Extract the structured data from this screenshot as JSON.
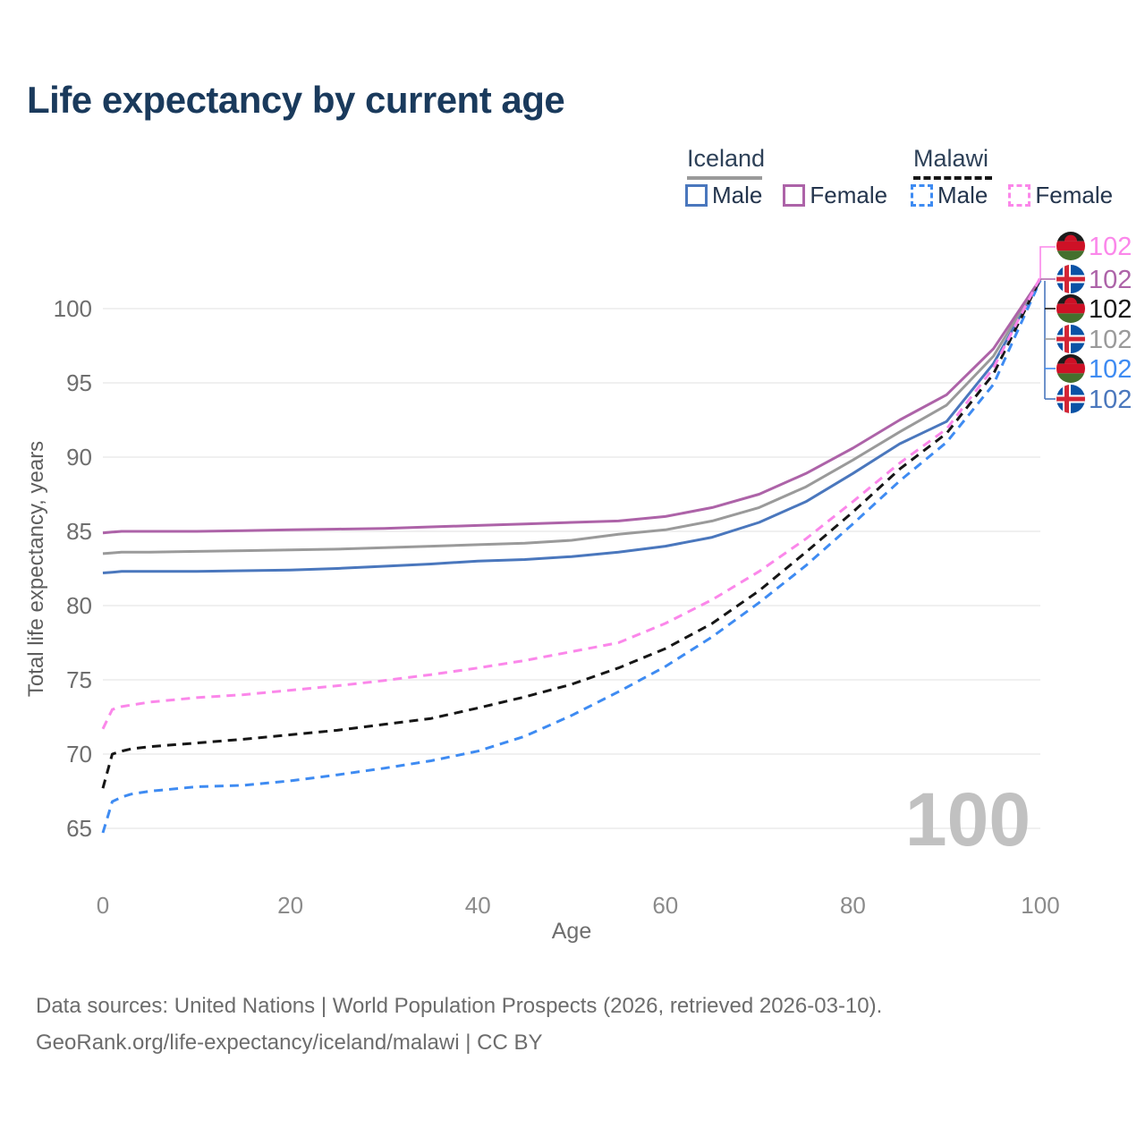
{
  "title": "Life expectancy by current age",
  "legend": {
    "groups": [
      {
        "country": "Iceland",
        "line_style": "solid",
        "items": [
          {
            "label": "Male",
            "dash": "solid"
          },
          {
            "label": "Female",
            "dash": "solid"
          }
        ]
      },
      {
        "country": "Malawi",
        "line_style": "dashed",
        "items": [
          {
            "label": "Male",
            "dash": "dashed"
          },
          {
            "label": "Female",
            "dash": "dashed"
          }
        ]
      }
    ]
  },
  "watermark": "100",
  "footer": {
    "line1": "Data sources: United Nations | World Population Prospects (2026, retrieved 2026-03-10).",
    "line2": "GeoRank.org/life-expectancy/iceland/malawi | CC BY"
  },
  "chart_data": {
    "type": "line",
    "title": "Life expectancy by current age",
    "xlabel": "Age",
    "ylabel": "Total life expectancy, years",
    "xlim": [
      0,
      100
    ],
    "ylim": [
      63,
      103
    ],
    "xticks": [
      0,
      20,
      40,
      60,
      80,
      100
    ],
    "yticks": [
      65,
      70,
      75,
      80,
      85,
      90,
      95,
      100
    ],
    "grid": "horizontal",
    "legend_position": "top-right",
    "x": [
      0,
      1,
      2,
      3,
      5,
      10,
      15,
      20,
      25,
      30,
      35,
      40,
      45,
      50,
      55,
      60,
      65,
      70,
      75,
      80,
      85,
      90,
      95,
      100
    ],
    "series": [
      {
        "name": "Malawi Female",
        "country": "malawi",
        "sex": "female",
        "color": "#fb87ea",
        "dash": "dashed",
        "end_label": "102",
        "values": [
          71.7,
          73.0,
          73.2,
          73.3,
          73.5,
          73.8,
          74.0,
          74.3,
          74.6,
          74.95,
          75.35,
          75.8,
          76.3,
          76.9,
          77.5,
          78.8,
          80.4,
          82.3,
          84.5,
          87.0,
          89.6,
          91.9,
          96.0,
          102.1
        ]
      },
      {
        "name": "Iceland Female",
        "country": "iceland",
        "sex": "female",
        "color": "#ad63a8",
        "dash": "solid",
        "end_label": "102",
        "values": [
          84.9,
          84.95,
          85.0,
          85.0,
          85.0,
          85.0,
          85.05,
          85.1,
          85.15,
          85.2,
          85.3,
          85.4,
          85.5,
          85.6,
          85.7,
          86.0,
          86.6,
          87.5,
          88.9,
          90.6,
          92.5,
          94.2,
          97.3,
          102.0
        ]
      },
      {
        "name": "Malawi Both sexes",
        "country": "malawi",
        "sex": "total",
        "color": "#161616",
        "dash": "dashed",
        "end_label": "102",
        "values": [
          67.7,
          70.0,
          70.2,
          70.35,
          70.5,
          70.75,
          71.0,
          71.3,
          71.6,
          72.0,
          72.4,
          73.1,
          73.85,
          74.7,
          75.8,
          77.1,
          78.8,
          81.0,
          83.6,
          86.3,
          89.2,
          91.6,
          95.6,
          102.0
        ]
      },
      {
        "name": "Iceland Both sexes",
        "country": "iceland",
        "sex": "total",
        "color": "#9a9a9a",
        "dash": "solid",
        "end_label": "102",
        "values": [
          83.5,
          83.55,
          83.6,
          83.6,
          83.6,
          83.65,
          83.7,
          83.75,
          83.8,
          83.9,
          84.0,
          84.1,
          84.2,
          84.4,
          84.8,
          85.1,
          85.7,
          86.6,
          88.0,
          89.8,
          91.7,
          93.5,
          96.8,
          102.0
        ]
      },
      {
        "name": "Malawi Male",
        "country": "malawi",
        "sex": "male",
        "color": "#3e8bf2",
        "dash": "dashed",
        "end_label": "102",
        "values": [
          64.7,
          66.8,
          67.1,
          67.3,
          67.5,
          67.8,
          67.9,
          68.2,
          68.6,
          69.05,
          69.55,
          70.2,
          71.2,
          72.6,
          74.2,
          75.9,
          77.9,
          80.2,
          82.7,
          85.5,
          88.4,
          91.0,
          94.9,
          101.9
        ]
      },
      {
        "name": "Iceland Male",
        "country": "iceland",
        "sex": "male",
        "color": "#4a77bd",
        "dash": "solid",
        "end_label": "102",
        "values": [
          82.2,
          82.25,
          82.3,
          82.3,
          82.3,
          82.3,
          82.35,
          82.4,
          82.5,
          82.65,
          82.8,
          83.0,
          83.1,
          83.3,
          83.6,
          84.0,
          84.6,
          85.6,
          87.0,
          88.9,
          90.9,
          92.4,
          96.3,
          101.9
        ]
      }
    ]
  }
}
